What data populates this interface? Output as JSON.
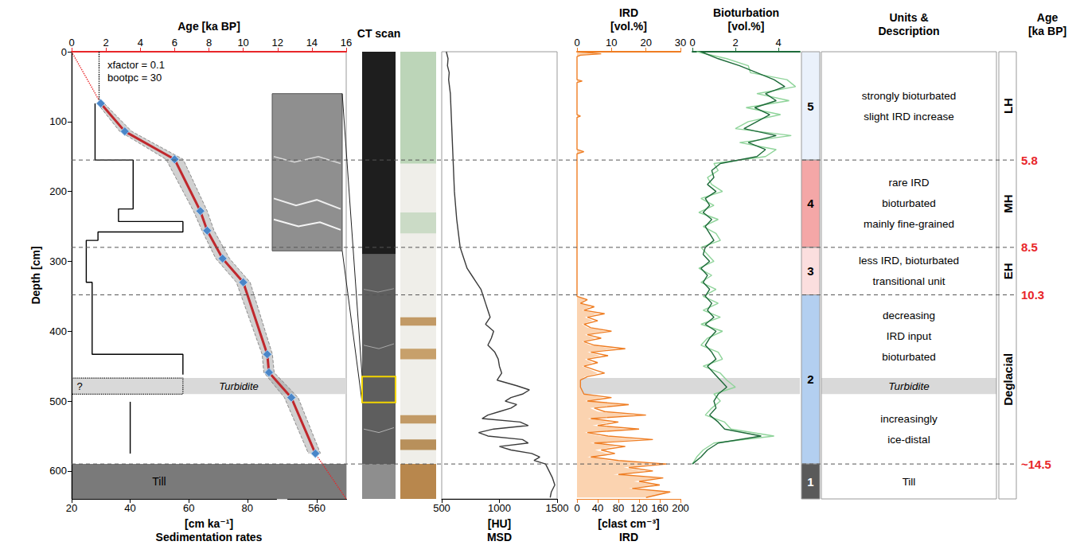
{
  "depth_axis": {
    "label": "Depth [cm]",
    "ylim": [
      0,
      640
    ],
    "yticks": [
      0,
      100,
      200,
      300,
      400,
      500,
      600
    ]
  },
  "chart_data": [
    {
      "type": "line",
      "grid": false,
      "x_label": "Age [ka BP]",
      "xlim": [
        0,
        16
      ],
      "xticks": [
        0,
        2,
        4,
        6,
        8,
        10,
        12,
        14,
        16
      ],
      "x2_label": [
        "[cm ka⁻¹]",
        "Sedimentation rates"
      ],
      "x2lim": [
        20,
        570
      ],
      "x2break": [
        90,
        550
      ],
      "x2ticks": [
        20,
        40,
        60,
        80,
        560
      ],
      "annotations": [
        "xfactor = 0.1",
        "bootpc = 30"
      ],
      "till": {
        "label": "Till",
        "from": 590,
        "to": 640,
        "color": "#7a7a7a"
      },
      "series": [
        {
          "type": "range",
          "color": "#8c8c8c",
          "line_style": "dashed",
          "depth": [
            74,
            114,
            154,
            228,
            256,
            296,
            330,
            433,
            459,
            495,
            575
          ],
          "min": [
            1.5,
            2.8,
            5.5,
            7.1,
            7.6,
            8.4,
            9.6,
            11.1,
            11.2,
            12.4,
            13.8
          ],
          "max": [
            1.9,
            3.5,
            6.5,
            7.9,
            8.3,
            9.2,
            10.4,
            11.7,
            11.8,
            13.2,
            14.5
          ]
        },
        {
          "type": "line",
          "color": "#e8262a",
          "line_style": "dotted",
          "depth": [
            0,
            74
          ],
          "values": [
            0,
            1.7
          ]
        },
        {
          "type": "line",
          "color": "#e8262a",
          "line_style": "dotted",
          "depth": [
            575,
            640
          ],
          "values": [
            14.2,
            16
          ]
        },
        {
          "type": "line",
          "color": "#000000",
          "line_style": "dotted",
          "depth": [
            0,
            74
          ],
          "values": [
            1.6,
            1.6
          ]
        },
        {
          "type": "step",
          "axis": "x2",
          "color": "#000000",
          "segments": [
            {
              "from": 74,
              "to": 155,
              "value": 28
            },
            {
              "from": 155,
              "to": 225,
              "value": 41
            },
            {
              "from": 225,
              "to": 243,
              "value": 36
            },
            {
              "from": 243,
              "to": 258,
              "value": 58
            },
            {
              "from": 258,
              "to": 270,
              "value": 29
            },
            {
              "from": 270,
              "to": 330,
              "value": 25
            },
            {
              "from": 330,
              "to": 433,
              "value": 27
            },
            {
              "from": 433,
              "to": 462,
              "value": 58
            },
            {
              "from": 501,
              "to": 575,
              "value": 40
            }
          ]
        },
        {
          "type": "box",
          "axis": "x2",
          "color": "#000000",
          "line_style": "dotted",
          "label": "?",
          "from": 467,
          "to": 490,
          "value": 58
        },
        {
          "type": "line",
          "color": "#c0282d",
          "marker": "diamond",
          "depth": [
            74,
            114,
            154,
            228,
            256,
            296,
            330,
            433,
            459,
            495,
            575
          ],
          "values": [
            1.7,
            3.1,
            6.0,
            7.5,
            7.9,
            8.8,
            10.0,
            11.4,
            11.5,
            12.8,
            14.2
          ]
        }
      ]
    },
    {
      "type": "line",
      "grid": false,
      "x2_label": [
        "[HU]",
        "MSD"
      ],
      "x2lim": [
        500,
        1500
      ],
      "x2ticks": [
        500,
        1000,
        1500
      ],
      "series": [
        {
          "type": "line",
          "axis": "x2",
          "color": "#3a3a3a",
          "depth": [
            0,
            10,
            20,
            30,
            40,
            60,
            80,
            100,
            120,
            140,
            160,
            180,
            200,
            220,
            240,
            260,
            280,
            290,
            300,
            310,
            320,
            330,
            340,
            350,
            360,
            370,
            380,
            390,
            400,
            410,
            420,
            430,
            440,
            450,
            460,
            470,
            478,
            484,
            490,
            495,
            500,
            505,
            510,
            515,
            520,
            525,
            530,
            535,
            540,
            545,
            550,
            555,
            560,
            565,
            570,
            575,
            580,
            585,
            590,
            600,
            610,
            620,
            630,
            638
          ],
          "values": [
            540,
            555,
            550,
            565,
            560,
            575,
            580,
            585,
            590,
            595,
            600,
            605,
            610,
            620,
            630,
            645,
            660,
            680,
            700,
            720,
            760,
            800,
            840,
            860,
            880,
            900,
            920,
            880,
            950,
            930,
            900,
            960,
            990,
            1000,
            1020,
            980,
            1150,
            1260,
            1200,
            1100,
            1050,
            1150,
            1100,
            1000,
            900,
            850,
            1180,
            1250,
            950,
            820,
            900,
            1200,
            1250,
            1000,
            1100,
            1280,
            1350,
            1300,
            1400,
            1430,
            1460,
            1480,
            1450,
            1440
          ]
        }
      ]
    },
    {
      "type": "line",
      "grid": false,
      "x_label": [
        "IRD",
        "[vol.%]"
      ],
      "xlim": [
        0,
        30
      ],
      "xticks": [
        0,
        10,
        20,
        30
      ],
      "x2_label": [
        "[clast cm⁻³]",
        "IRD"
      ],
      "x2lim": [
        0,
        200
      ],
      "x2ticks": [
        0,
        40,
        80,
        120,
        160,
        200
      ],
      "series": [
        {
          "type": "area",
          "axis": "x2",
          "color": "#fbd3b0",
          "depth": [
            0,
            3,
            5,
            7,
            40,
            42,
            44,
            90,
            92,
            94,
            140,
            143,
            146,
            300,
            350,
            355,
            360,
            365,
            370,
            375,
            380,
            385,
            390,
            395,
            400,
            405,
            410,
            415,
            420,
            425,
            430,
            435,
            440,
            445,
            450,
            455,
            460,
            465,
            470,
            480,
            490,
            495,
            500,
            505,
            510,
            515,
            520,
            525,
            530,
            535,
            540,
            545,
            550,
            555,
            560,
            565,
            570,
            575,
            580,
            585,
            590,
            595,
            600,
            605,
            610,
            615,
            620,
            625,
            630,
            638
          ],
          "values": [
            0,
            30,
            5,
            0,
            0,
            8,
            0,
            0,
            5,
            0,
            0,
            10,
            0,
            0,
            0,
            15,
            6,
            25,
            10,
            40,
            15,
            30,
            10,
            20,
            55,
            15,
            35,
            10,
            25,
            75,
            20,
            45,
            15,
            30,
            10,
            25,
            40,
            15,
            5,
            5,
            10,
            50,
            15,
            85,
            25,
            40,
            110,
            20,
            65,
            30,
            95,
            15,
            45,
            120,
            25,
            75,
            35,
            60,
            20,
            65,
            150,
            90,
            130,
            70,
            160,
            110,
            150,
            100,
            185,
            130
          ]
        },
        {
          "type": "line",
          "color": "#ef7d22",
          "depth": [
            0,
            3,
            5,
            7,
            40,
            42,
            44,
            90,
            92,
            94,
            140,
            143,
            146,
            300,
            350,
            355,
            360,
            365,
            370,
            375,
            380,
            385,
            390,
            395,
            400,
            405,
            410,
            415,
            420,
            425,
            430,
            435,
            440,
            445,
            450,
            455,
            460,
            465,
            470,
            480,
            490,
            495,
            500,
            505,
            510,
            515,
            520,
            525,
            530,
            535,
            540,
            545,
            550,
            555,
            560,
            565,
            570,
            575,
            580,
            585,
            590,
            595,
            600,
            605,
            610,
            615,
            620,
            625,
            630,
            638
          ],
          "values": [
            0,
            7,
            1,
            0,
            0,
            1.5,
            0,
            0,
            1,
            0,
            0,
            2,
            0,
            0,
            0,
            3,
            1,
            5,
            2,
            8,
            3,
            6,
            2,
            4,
            10,
            3,
            7,
            2,
            5,
            14,
            4,
            9,
            3,
            6,
            2,
            5,
            8,
            3,
            1,
            1,
            2,
            10,
            3,
            15,
            5,
            8,
            20,
            4,
            12,
            6,
            18,
            3,
            9,
            22,
            5,
            14,
            7,
            11,
            4,
            12,
            26,
            15,
            22,
            12,
            25,
            18,
            24,
            16,
            27,
            20
          ]
        }
      ]
    },
    {
      "type": "line",
      "grid": false,
      "x_label": [
        "Bioturbation",
        "[vol.%]"
      ],
      "xlim": [
        0,
        5
      ],
      "xticks": [
        0,
        2,
        4
      ],
      "series": [
        {
          "type": "line",
          "color": "#8fd49a",
          "depth": [
            0,
            10,
            20,
            30,
            40,
            50,
            60,
            70,
            80,
            90,
            100,
            110,
            120,
            130,
            140,
            150,
            160,
            170,
            180,
            190,
            200,
            210,
            220,
            230,
            240,
            250,
            260,
            270,
            280,
            290,
            300,
            310,
            320,
            330,
            340,
            350,
            360,
            370,
            380,
            390,
            400,
            410,
            420,
            430,
            440,
            450,
            460,
            470,
            480,
            490,
            500,
            510,
            520,
            530,
            540,
            550,
            560,
            570,
            580,
            590
          ],
          "values": [
            0.2,
            1.6,
            2.6,
            2.7,
            4.4,
            4.8,
            3.0,
            4.5,
            2.5,
            4.1,
            2.6,
            2.0,
            4.6,
            2.2,
            3.9,
            3.4,
            1.0,
            1.2,
            0.7,
            0.9,
            1.4,
            0.4,
            1.0,
            0.3,
            1.2,
            0.5,
            1.1,
            1.3,
            0.4,
            0.7,
            1.0,
            0.3,
            0.9,
            0.4,
            1.1,
            0.5,
            1.2,
            0.5,
            1.3,
            0.4,
            1.4,
            0.7,
            0.4,
            1.2,
            1.4,
            0.5,
            1.3,
            1.6,
            2.0,
            1.0,
            1.3,
            0.9,
            0.6,
            1.5,
            1.8,
            3.8,
            1.0,
            0.5,
            0.2,
            0.0
          ]
        },
        {
          "type": "line",
          "color": "#1e6b3a",
          "depth": [
            0,
            10,
            20,
            30,
            40,
            50,
            60,
            70,
            80,
            90,
            100,
            110,
            120,
            130,
            140,
            150,
            160,
            170,
            180,
            190,
            200,
            210,
            220,
            230,
            240,
            250,
            260,
            270,
            280,
            290,
            300,
            310,
            320,
            330,
            340,
            350,
            360,
            370,
            380,
            390,
            400,
            410,
            420,
            430,
            440,
            450,
            460,
            470,
            480,
            490,
            500,
            510,
            520,
            530,
            540,
            550,
            560,
            570,
            580,
            590
          ],
          "values": [
            0.4,
            1.2,
            2.2,
            3.0,
            3.8,
            4.3,
            3.4,
            3.9,
            2.9,
            3.6,
            3.0,
            2.4,
            3.9,
            2.6,
            3.4,
            3.0,
            1.3,
            0.9,
            1.0,
            0.7,
            1.1,
            0.6,
            0.8,
            0.5,
            0.9,
            0.6,
            0.8,
            1.0,
            0.6,
            0.5,
            0.8,
            0.4,
            0.7,
            0.5,
            0.8,
            0.6,
            0.9,
            0.7,
            1.0,
            0.6,
            1.1,
            0.8,
            0.6,
            0.9,
            1.1,
            0.7,
            1.0,
            1.3,
            1.6,
            1.2,
            1.0,
            1.1,
            0.8,
            1.2,
            1.5,
            3.2,
            1.2,
            0.7,
            0.4,
            0.0
          ]
        }
      ]
    }
  ],
  "turbidite": {
    "label": "Turbidite",
    "from": 467,
    "to": 490,
    "color": "#d9d9d9"
  },
  "core_images": {
    "title": "CT scan"
  },
  "units": {
    "title": [
      "Units &",
      "Description"
    ],
    "items": [
      {
        "number": 5,
        "from": 0,
        "to": 155,
        "color": "#eaf1fb",
        "description": [
          [
            "strongly bioturbated",
            "slight IRD increase"
          ]
        ]
      },
      {
        "number": 4,
        "from": 155,
        "to": 280,
        "color": "#f4a7a7",
        "description": [
          [
            "rare IRD",
            "bioturbated",
            "mainly fine-grained"
          ]
        ]
      },
      {
        "number": 3,
        "from": 280,
        "to": 348,
        "color": "#fbdede",
        "description": [
          [
            "less IRD, bioturbated",
            "transitional unit"
          ]
        ]
      },
      {
        "number": 2,
        "from": 348,
        "to": 590,
        "color": "#b3cff0",
        "description": [
          [
            "decreasing",
            "IRD input",
            "bioturbated"
          ],
          [
            "increasingly",
            "ice-distal"
          ]
        ]
      },
      {
        "number": 1,
        "from": 590,
        "to": 640,
        "color": "#5a5a5a",
        "description": [
          [
            "Till"
          ]
        ]
      }
    ]
  },
  "periods": {
    "title": [
      "Age",
      "[ka BP]"
    ],
    "items": [
      {
        "label": "LH",
        "from": 0,
        "to": 155
      },
      {
        "label": "MH",
        "from": 155,
        "to": 280
      },
      {
        "label": "EH",
        "from": 280,
        "to": 348
      },
      {
        "label": "Deglacial",
        "from": 348,
        "to": 590
      }
    ]
  },
  "boundaries": [
    {
      "depth": 155,
      "label": "5.8"
    },
    {
      "depth": 280,
      "label": "8.5"
    },
    {
      "depth": 348,
      "label": "10.3"
    },
    {
      "depth": 590,
      "label": "~14.5"
    }
  ]
}
